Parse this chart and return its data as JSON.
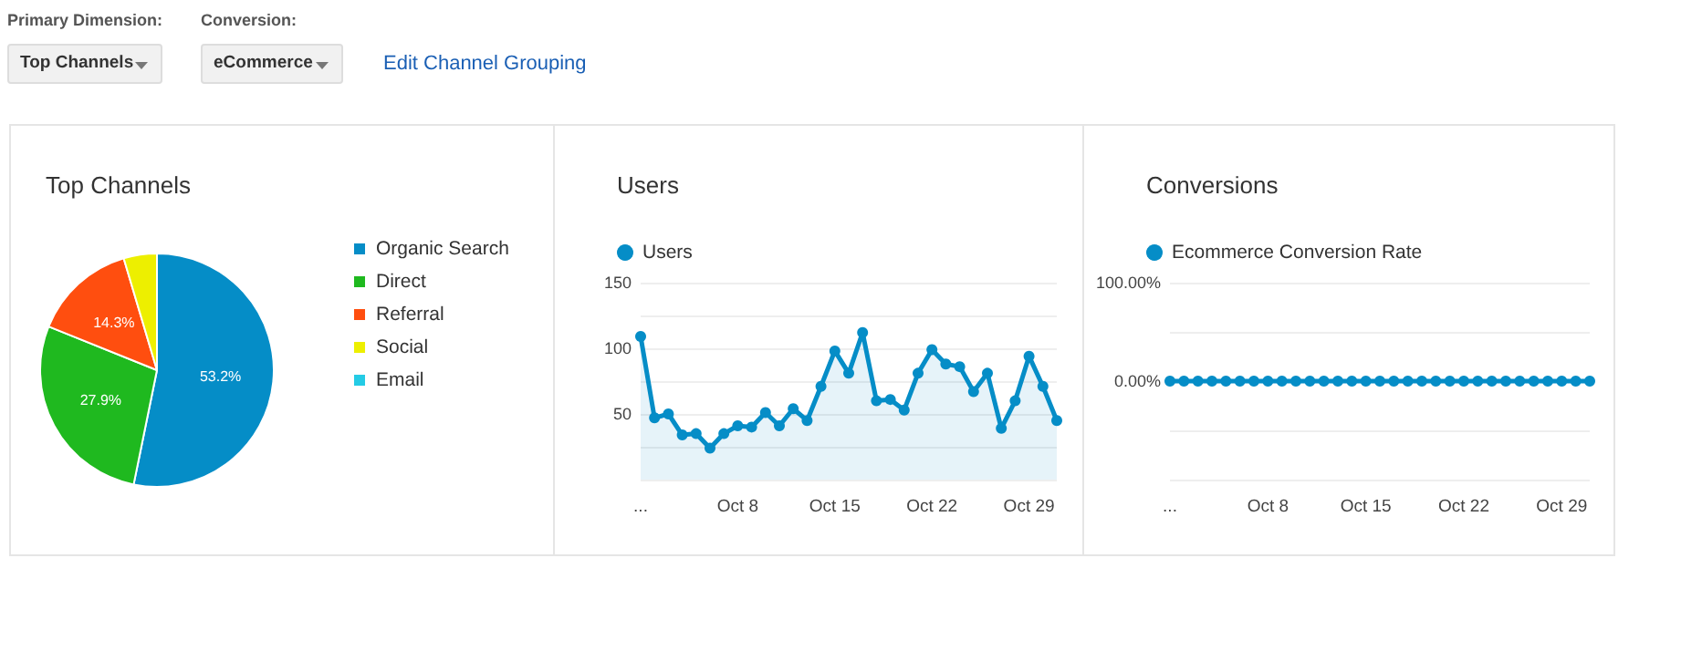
{
  "chart_data": [
    {
      "type": "other",
      "annotations": [
        "Primary Dimension:",
        "Top Channels",
        "Conversion:",
        "eCommerce",
        "Edit Channel Grouping"
      ]
    },
    {
      "type": "pie",
      "title": "Top Channels",
      "categories": [
        "Organic Search",
        "Direct",
        "Referral",
        "Social",
        "Email"
      ],
      "values": [
        53.2,
        27.9,
        14.3,
        4.6,
        0
      ],
      "colors": [
        "#058dc7",
        "#1fb91f",
        "#ff4e0f",
        "#edef00",
        "#24cbe5"
      ],
      "value_labels": [
        "53.2%",
        "27.9%",
        "14.3%",
        null,
        null
      ],
      "legend": "right"
    },
    {
      "type": "area",
      "title": "Users",
      "categories": [
        "...",
        null,
        null,
        null,
        null,
        null,
        null,
        "Oct 8",
        null,
        null,
        null,
        null,
        null,
        null,
        "Oct 15",
        null,
        null,
        null,
        null,
        null,
        null,
        "Oct 22",
        null,
        null,
        null,
        null,
        null,
        null,
        "Oct 29",
        null,
        null
      ],
      "series": [
        {
          "name": "Users",
          "color": "#058dc7",
          "values": [
            109,
            47,
            50,
            34,
            35,
            24,
            35,
            41,
            40,
            51,
            41,
            54,
            45,
            71,
            98,
            81,
            112,
            60,
            61,
            53,
            81,
            99,
            88,
            86,
            67,
            81,
            39,
            60,
            94,
            71,
            45
          ]
        }
      ],
      "ylim": [
        0,
        150
      ],
      "yticks": [
        {
          "value": 0,
          "label": null
        },
        {
          "value": 25,
          "label": null
        },
        50,
        {
          "value": 75,
          "label": null
        },
        100,
        {
          "value": 125,
          "label": null
        },
        150
      ],
      "grid": "y",
      "legend": "top left",
      "marker": "circle"
    },
    {
      "type": "line",
      "title": "Conversions",
      "categories": [
        "...",
        null,
        null,
        null,
        null,
        null,
        null,
        "Oct 8",
        null,
        null,
        null,
        null,
        null,
        null,
        "Oct 15",
        null,
        null,
        null,
        null,
        null,
        null,
        "Oct 22",
        null,
        null,
        null,
        null,
        null,
        null,
        "Oct 29",
        null,
        null
      ],
      "series": [
        {
          "name": "Ecommerce Conversion Rate",
          "color": "#058dc7",
          "values": [
            0,
            0,
            0,
            0,
            0,
            0,
            0,
            0,
            0,
            0,
            0,
            0,
            0,
            0,
            0,
            0,
            0,
            0,
            0,
            0,
            0,
            0,
            0,
            0,
            0,
            0,
            0,
            0,
            0,
            0,
            0
          ]
        }
      ],
      "ylim": [
        -100,
        100
      ],
      "yticks": [
        {
          "value": -100,
          "label": null
        },
        {
          "value": -50,
          "label": null
        },
        {
          "value": 0,
          "label": "0.00%"
        },
        {
          "value": 50,
          "label": null
        },
        {
          "value": 100,
          "label": "100.00%"
        }
      ],
      "grid": "y",
      "legend": "top left",
      "marker": "circle"
    }
  ]
}
